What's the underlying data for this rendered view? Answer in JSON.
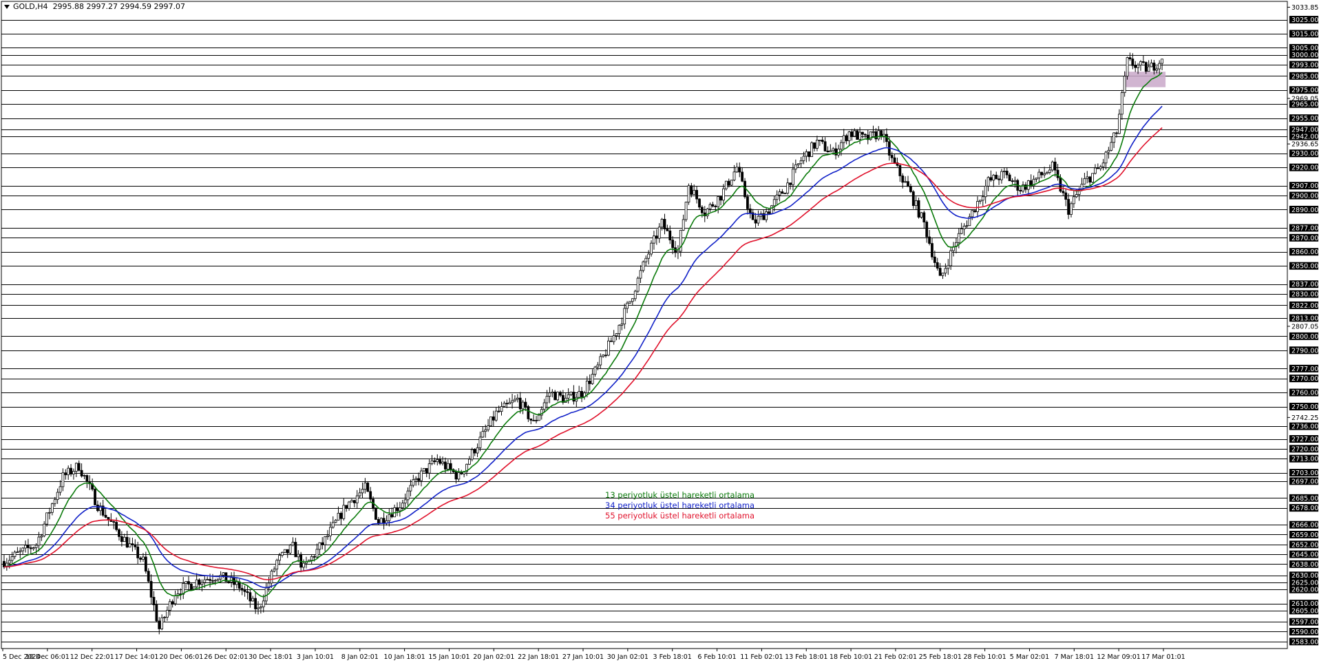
{
  "header": {
    "symbol": "GOLD,H4",
    "ohlc": "2995.88 2997.27 2994.59 2997.07"
  },
  "legend": [
    {
      "label": "13 periyotluk üstel hareketli ortalama",
      "color": "#0a7a0a"
    },
    {
      "label": "34 periyotluk üstel hareketli ortalama",
      "color": "#1020c8"
    },
    {
      "label": "55 periyotluk üstel hareketli ortalama",
      "color": "#e0102a"
    }
  ],
  "colors": {
    "background": "#ffffff",
    "candle": "#000000",
    "grid_line": "#000000",
    "price_tag_bg": "#000000",
    "price_tag_text": "#ffffff",
    "zone": "#c9a8c9"
  },
  "chart_data": {
    "type": "candlestick",
    "instrument": "GOLD",
    "timeframe": "H4",
    "ylim": [
      2578,
      3038
    ],
    "axis_labels": [
      3033.85,
      2969.05,
      2936.65,
      2807.05,
      2742.25
    ],
    "horizontal_levels": [
      3025.0,
      3015.0,
      3005.0,
      3000.0,
      2993.0,
      2985.0,
      2975.0,
      2965.0,
      2955.0,
      2947.0,
      2942.0,
      2930.0,
      2920.0,
      2907.0,
      2900.0,
      2890.0,
      2877.0,
      2870.0,
      2860.0,
      2850.0,
      2837.0,
      2830.0,
      2822.0,
      2813.0,
      2800.0,
      2790.0,
      2777.0,
      2770.0,
      2760.0,
      2750.0,
      2736.0,
      2727.0,
      2720.0,
      2713.0,
      2703.0,
      2697.0,
      2685.0,
      2678.0,
      2666.0,
      2659.0,
      2652.0,
      2645.0,
      2638.0,
      2630.0,
      2625.0,
      2620.0,
      2610.0,
      2605.0,
      2597.0,
      2590.0,
      2583.0
    ],
    "x_labels": [
      "5 Dec 2024",
      "10 Dec 06:01",
      "12 Dec 22:01",
      "17 Dec 14:01",
      "20 Dec 06:01",
      "26 Dec 02:01",
      "30 Dec 18:01",
      "3 Jan 10:01",
      "8 Jan 02:01",
      "10 Jan 18:01",
      "15 Jan 10:01",
      "20 Jan 02:01",
      "22 Jan 18:01",
      "27 Jan 10:01",
      "30 Jan 02:01",
      "3 Feb 18:01",
      "6 Feb 10:01",
      "11 Feb 02:01",
      "13 Feb 18:01",
      "18 Feb 10:01",
      "21 Feb 02:01",
      "25 Feb 18:01",
      "28 Feb 10:01",
      "5 Mar 02:01",
      "7 Mar 18:01",
      "12 Mar 09:01",
      "17 Mar 01:01"
    ],
    "price_path_keypoints": [
      [
        0,
        2640
      ],
      [
        12,
        2652
      ],
      [
        22,
        2700
      ],
      [
        28,
        2708
      ],
      [
        35,
        2680
      ],
      [
        42,
        2662
      ],
      [
        52,
        2640
      ],
      [
        58,
        2592
      ],
      [
        64,
        2618
      ],
      [
        72,
        2626
      ],
      [
        80,
        2630
      ],
      [
        88,
        2622
      ],
      [
        95,
        2605
      ],
      [
        102,
        2640
      ],
      [
        108,
        2650
      ],
      [
        112,
        2635
      ],
      [
        120,
        2655
      ],
      [
        128,
        2680
      ],
      [
        135,
        2692
      ],
      [
        140,
        2668
      ],
      [
        148,
        2680
      ],
      [
        155,
        2700
      ],
      [
        162,
        2712
      ],
      [
        170,
        2700
      ],
      [
        176,
        2720
      ],
      [
        184,
        2745
      ],
      [
        192,
        2755
      ],
      [
        198,
        2738
      ],
      [
        204,
        2760
      ],
      [
        210,
        2755
      ],
      [
        216,
        2760
      ],
      [
        222,
        2778
      ],
      [
        228,
        2800
      ],
      [
        234,
        2825
      ],
      [
        240,
        2855
      ],
      [
        246,
        2880
      ],
      [
        252,
        2860
      ],
      [
        256,
        2908
      ],
      [
        262,
        2888
      ],
      [
        268,
        2900
      ],
      [
        274,
        2920
      ],
      [
        280,
        2880
      ],
      [
        286,
        2890
      ],
      [
        292,
        2905
      ],
      [
        298,
        2925
      ],
      [
        304,
        2938
      ],
      [
        310,
        2930
      ],
      [
        316,
        2945
      ],
      [
        322,
        2940
      ],
      [
        328,
        2945
      ],
      [
        332,
        2925
      ],
      [
        338,
        2905
      ],
      [
        344,
        2880
      ],
      [
        350,
        2840
      ],
      [
        356,
        2868
      ],
      [
        362,
        2888
      ],
      [
        368,
        2910
      ],
      [
        374,
        2915
      ],
      [
        380,
        2905
      ],
      [
        386,
        2912
      ],
      [
        392,
        2920
      ],
      [
        398,
        2890
      ],
      [
        404,
        2910
      ],
      [
        410,
        2920
      ],
      [
        416,
        2945
      ],
      [
        420,
        2995
      ],
      [
        424,
        2992
      ],
      [
        428,
        2990
      ],
      [
        431,
        2994
      ],
      [
        433,
        2997
      ]
    ],
    "series": [
      {
        "name": "13 periyotluk üstel hareketli ortalama",
        "period": 13,
        "color": "#0a7a0a"
      },
      {
        "name": "34 periyotluk üstel hareketli ortalama",
        "period": 34,
        "color": "#1020c8"
      },
      {
        "name": "55 periyotluk üstel hareketli ortalama",
        "period": 55,
        "color": "#e0102a"
      }
    ],
    "zone": {
      "price_top": 2988,
      "price_bottom": 2977,
      "bar_from": 420,
      "bar_to": 433
    },
    "grid": false
  }
}
